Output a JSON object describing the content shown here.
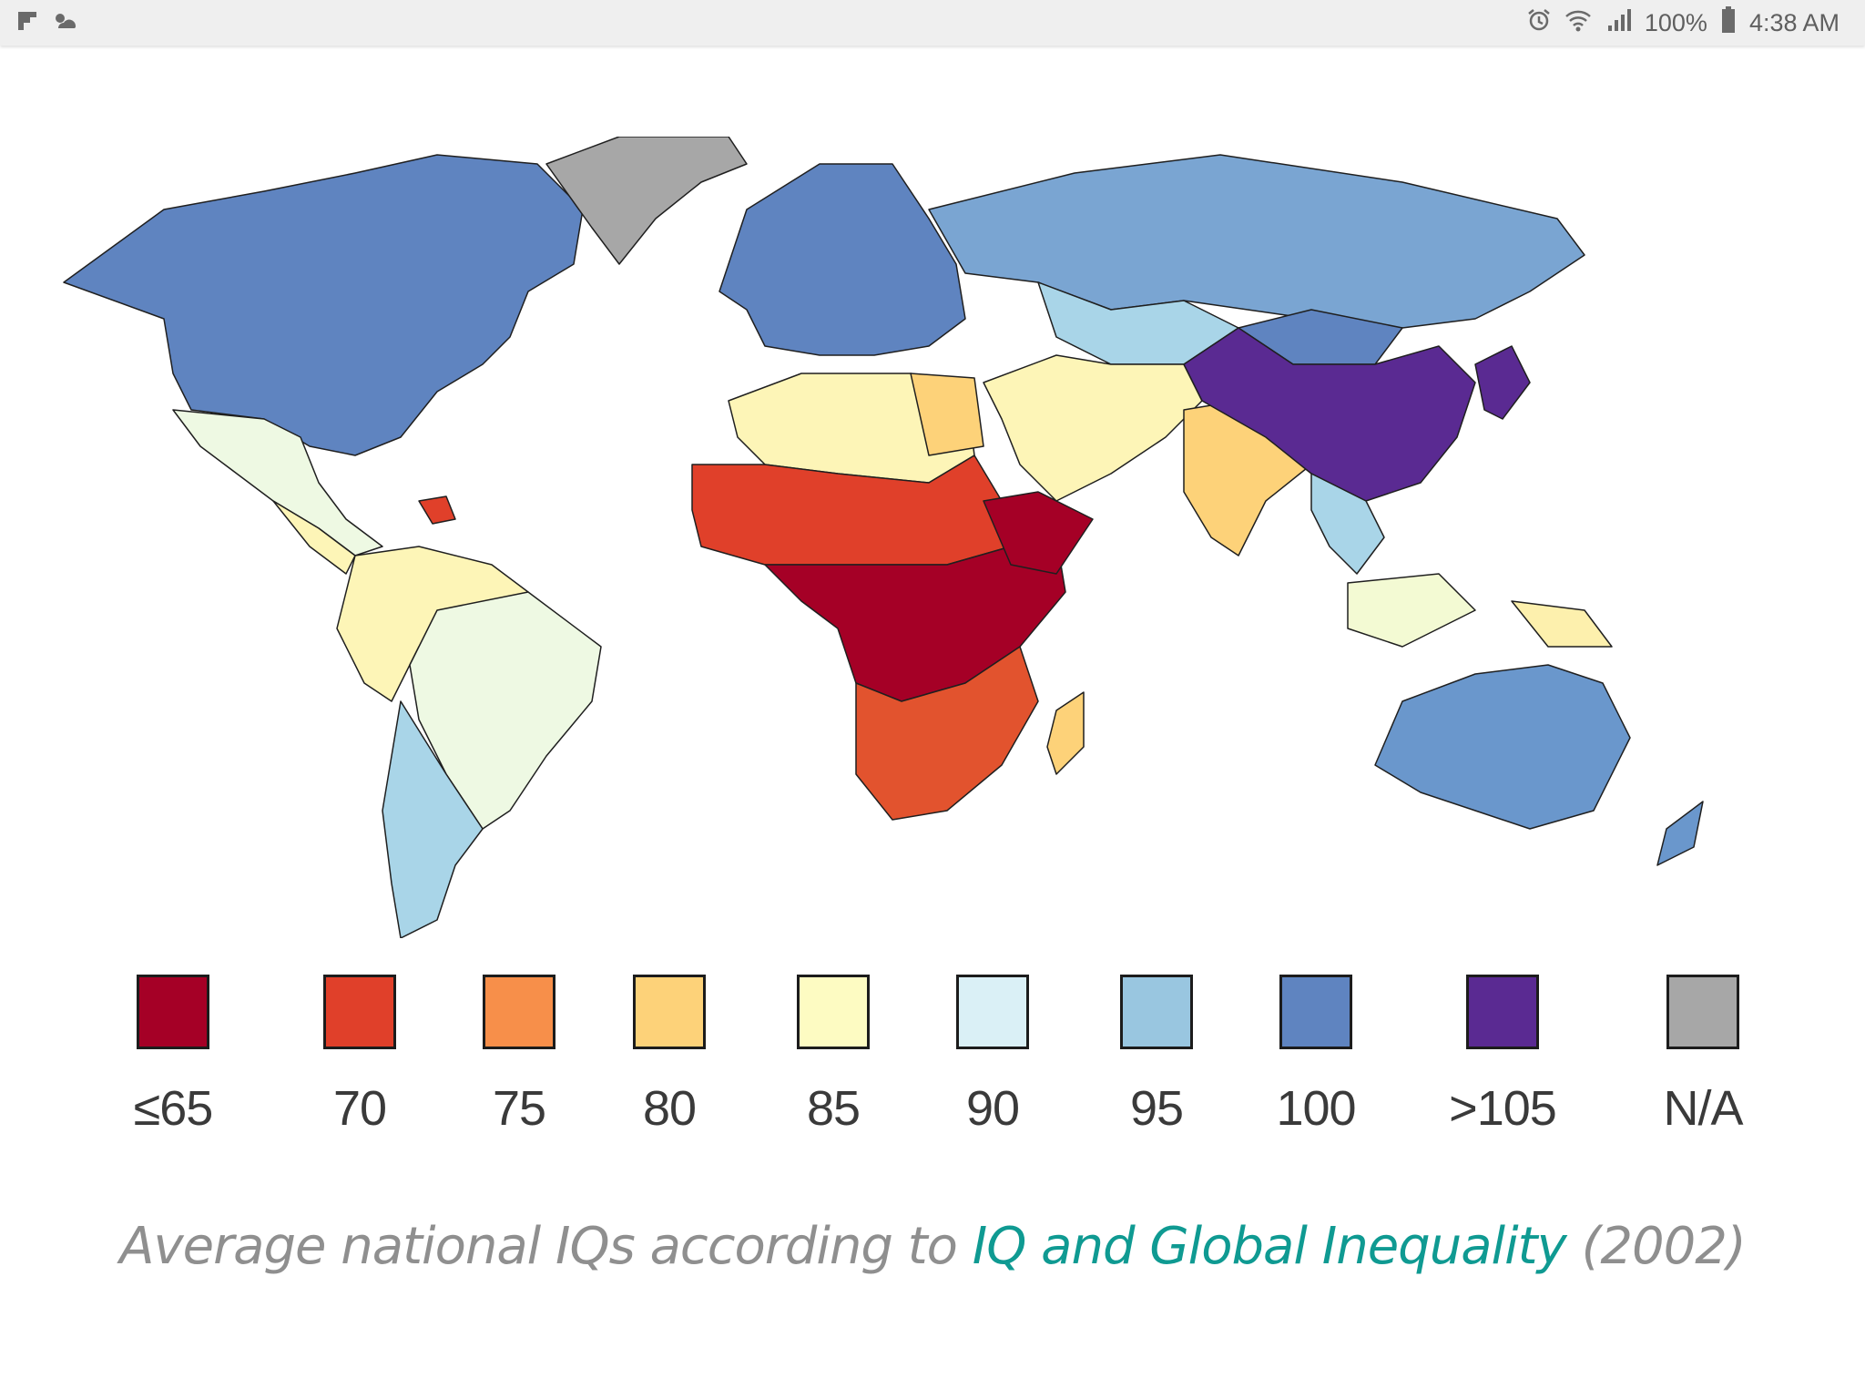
{
  "status_bar": {
    "left_icons": [
      "flipboard-icon",
      "weather-icon"
    ],
    "right_icons": [
      "alarm-icon",
      "wifi-icon",
      "signal-icon",
      "battery-icon"
    ],
    "battery": "100%",
    "time": "4:38 AM"
  },
  "legend": {
    "items": [
      {
        "label": "≤65",
        "color": "#a50026"
      },
      {
        "label": "70",
        "color": "#e0402a"
      },
      {
        "label": "75",
        "color": "#f78f4a"
      },
      {
        "label": "80",
        "color": "#fdd279"
      },
      {
        "label": "85",
        "color": "#fdfbc2"
      },
      {
        "label": "90",
        "color": "#daf0f6"
      },
      {
        "label": "95",
        "color": "#99c6e0"
      },
      {
        "label": "100",
        "color": "#5f84c0"
      },
      {
        "label": ">105",
        "color": "#5a2a92"
      },
      {
        "label": "N/A",
        "color": "#a7a7a7"
      }
    ]
  },
  "map_colors": {
    "north_america": "#5f84c0",
    "greenland": "#a7a7a7",
    "mexico_central": "#eef9e3",
    "south_america_north": "#fdf5b7",
    "brazil": "#eef9e3",
    "argentina_chile": "#a9d5e8",
    "europe": "#5f84c0",
    "russia": "#7aa5d2",
    "north_africa": "#fdf5b7",
    "egypt": "#fdd279",
    "sahel": "#e0402a",
    "west_central_africa": "#a50026",
    "southern_africa": "#e2532e",
    "middle_east": "#fdf5b7",
    "india": "#fdd279",
    "china": "#5a2a92",
    "mongolia": "#5f84c0",
    "central_asia": "#a9d5e8",
    "southeast_asia": "#f3fad3",
    "indochina": "#a9d5e8",
    "australia": "#6a97cc",
    "new_guinea": "#fdf0ad",
    "madagascar": "#fdd279",
    "japan_korea": "#5a2a92"
  },
  "caption": {
    "prefix": "Average national IQs according to ",
    "link": "IQ and Global Inequality",
    "suffix": " (2002)"
  }
}
